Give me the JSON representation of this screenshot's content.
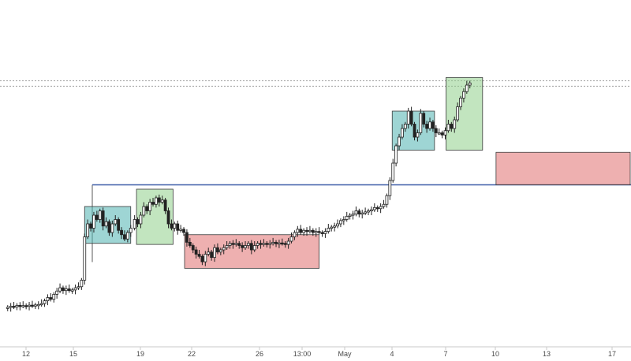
{
  "chart_data": {
    "type": "candlestick",
    "x_axis": {
      "tick_labels": [
        "12",
        "15",
        "19",
        "22",
        "26",
        "13:00",
        "May",
        "4",
        "7",
        "10",
        "13",
        "17"
      ]
    },
    "horizontal_lines": [
      {
        "name": "dotted-level-upper",
        "value": 100,
        "style": "dotted",
        "color": "#9e9e9e"
      },
      {
        "name": "dotted-level-lower",
        "value": 97.5,
        "style": "dotted",
        "color": "#9e9e9e"
      },
      {
        "name": "support-line",
        "value": 52,
        "style": "solid",
        "color": "#3e5ea8"
      }
    ],
    "zones": [
      {
        "kind": "teal",
        "from": 22,
        "to": 34,
        "top": 42,
        "bottom": 25,
        "color": "#4fb3b0"
      },
      {
        "kind": "green",
        "from": 35.5,
        "to": 45,
        "top": 50,
        "bottom": 24.5,
        "color": "#8fd08a"
      },
      {
        "kind": "red",
        "from": 48,
        "to": 83,
        "top": 29,
        "bottom": 13.5,
        "color": "#e07070"
      },
      {
        "kind": "teal",
        "from": 102,
        "to": 113,
        "top": 86,
        "bottom": 68,
        "color": "#4fb3b0"
      },
      {
        "kind": "green",
        "from": 116,
        "to": 125.5,
        "top": 101.5,
        "bottom": 68,
        "color": "#8fd08a"
      },
      {
        "kind": "red",
        "from": 129,
        "to": 165,
        "top": 67,
        "bottom": 52,
        "color": "#e07070"
      }
    ],
    "candles": [
      [
        2,
        -4.5
      ],
      [
        2.8,
        -4.0
      ],
      [
        3.6,
        -4.3
      ],
      [
        4.4,
        -3.6
      ],
      [
        5.2,
        -3.9
      ],
      [
        6,
        -3.7
      ],
      [
        6.8,
        -3.9
      ],
      [
        7.6,
        -3.5
      ],
      [
        8.4,
        -3.8
      ],
      [
        9.2,
        -3.4
      ],
      [
        10,
        -3.2
      ],
      [
        10.8,
        -2.8
      ],
      [
        11.6,
        -1.5
      ],
      [
        12.4,
        0
      ],
      [
        13.2,
        -0.8
      ],
      [
        14,
        1.5
      ],
      [
        14.8,
        3
      ],
      [
        15.6,
        4.5
      ],
      [
        16.4,
        3.2
      ],
      [
        17.2,
        4
      ],
      [
        18,
        3.2
      ],
      [
        18.8,
        3.5
      ],
      [
        19.6,
        4.5
      ],
      [
        20.4,
        5
      ],
      [
        21.2,
        8
      ],
      [
        22,
        28
      ],
      [
        22.8,
        34
      ],
      [
        23.6,
        32
      ],
      [
        24.4,
        38
      ],
      [
        25.2,
        36
      ],
      [
        26,
        40
      ],
      [
        26.8,
        33
      ],
      [
        27.6,
        35
      ],
      [
        28.4,
        30
      ],
      [
        29.2,
        34
      ],
      [
        30,
        36
      ],
      [
        30.8,
        31
      ],
      [
        31.6,
        29
      ],
      [
        32.4,
        27
      ],
      [
        33.2,
        30
      ],
      [
        34,
        32
      ],
      [
        35,
        36
      ],
      [
        35.8,
        34
      ],
      [
        36.6,
        38
      ],
      [
        37.4,
        42
      ],
      [
        38.2,
        40
      ],
      [
        39,
        44
      ],
      [
        39.8,
        43
      ],
      [
        40.6,
        46
      ],
      [
        41.4,
        44
      ],
      [
        42.2,
        45
      ],
      [
        43,
        40
      ],
      [
        43.8,
        34
      ],
      [
        44.6,
        32
      ],
      [
        45.4,
        34
      ],
      [
        46.2,
        31
      ],
      [
        47,
        31.5
      ],
      [
        47.8,
        30
      ],
      [
        48.6,
        25.5
      ],
      [
        49.4,
        24
      ],
      [
        50.2,
        22
      ],
      [
        51,
        20
      ],
      [
        51.8,
        19
      ],
      [
        52.6,
        16.5
      ],
      [
        53.4,
        20
      ],
      [
        54.2,
        21
      ],
      [
        55,
        18.5
      ],
      [
        55.8,
        23
      ],
      [
        56.6,
        21
      ],
      [
        57.4,
        22
      ],
      [
        58.2,
        23
      ],
      [
        59,
        24
      ],
      [
        59.8,
        25
      ],
      [
        60.6,
        24.5
      ],
      [
        61.4,
        25
      ],
      [
        62.2,
        24
      ],
      [
        63,
        23
      ],
      [
        63.8,
        24
      ],
      [
        64.6,
        25
      ],
      [
        65.4,
        22
      ],
      [
        66.2,
        24
      ],
      [
        67,
        25
      ],
      [
        67.8,
        24.5
      ],
      [
        68.6,
        25
      ],
      [
        69.4,
        24.6
      ],
      [
        70.2,
        25
      ],
      [
        71,
        25.5
      ],
      [
        71.8,
        24.8
      ],
      [
        72.6,
        25.2
      ],
      [
        73.4,
        25
      ],
      [
        74.2,
        24.5
      ],
      [
        75,
        26
      ],
      [
        75.8,
        28
      ],
      [
        76.6,
        30
      ],
      [
        77.4,
        31.5
      ],
      [
        78.2,
        30
      ],
      [
        79,
        31
      ],
      [
        79.8,
        30.5
      ],
      [
        80.6,
        31
      ],
      [
        81.4,
        30
      ],
      [
        82.2,
        30.5
      ],
      [
        83,
        30
      ],
      [
        83.8,
        29.5
      ],
      [
        84.6,
        30.5
      ],
      [
        85.4,
        32
      ],
      [
        86.2,
        32.5
      ],
      [
        87,
        33
      ],
      [
        87.8,
        34
      ],
      [
        88.6,
        35.5
      ],
      [
        89.4,
        36
      ],
      [
        90.2,
        37.5
      ],
      [
        91,
        38
      ],
      [
        91.8,
        38.5
      ],
      [
        92.6,
        40
      ],
      [
        93.4,
        38.5
      ],
      [
        94.2,
        39
      ],
      [
        95,
        39.5
      ],
      [
        95.8,
        40
      ],
      [
        96.6,
        40.5
      ],
      [
        97.4,
        41.5
      ],
      [
        98.2,
        41
      ],
      [
        99,
        42
      ],
      [
        99.8,
        43
      ],
      [
        100.6,
        47
      ],
      [
        101.4,
        54
      ],
      [
        102.2,
        62
      ],
      [
        103,
        70
      ],
      [
        103.8,
        74
      ],
      [
        104.6,
        78
      ],
      [
        105.4,
        80
      ],
      [
        106.2,
        86
      ],
      [
        107,
        80
      ],
      [
        107.8,
        74
      ],
      [
        108.6,
        76
      ],
      [
        109.4,
        85
      ],
      [
        110.2,
        80
      ],
      [
        111,
        78
      ],
      [
        111.8,
        81
      ],
      [
        112.6,
        78
      ],
      [
        113.4,
        76
      ],
      [
        114.2,
        76
      ],
      [
        115,
        75
      ],
      [
        115.8,
        77
      ],
      [
        116.6,
        80
      ],
      [
        117.4,
        78
      ],
      [
        118.2,
        82
      ],
      [
        119,
        88
      ],
      [
        119.8,
        92
      ],
      [
        120.6,
        95
      ],
      [
        121.4,
        98
      ],
      [
        122.2,
        99
      ]
    ]
  }
}
